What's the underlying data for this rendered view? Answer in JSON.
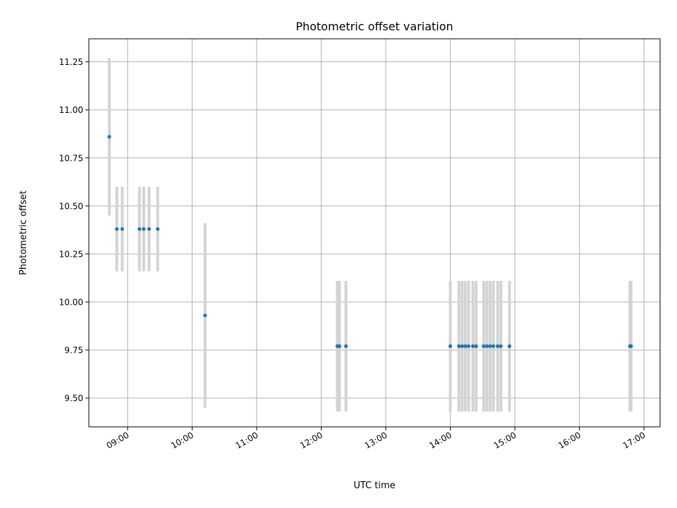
{
  "chart_data": {
    "type": "scatter",
    "title": "Photometric offset variation",
    "xlabel": "UTC time",
    "ylabel": "Photometric offset",
    "x_ticks": [
      "09:00",
      "10:00",
      "11:00",
      "12:00",
      "13:00",
      "14:00",
      "15:00",
      "16:00",
      "17:00"
    ],
    "xlim": [
      "08:24",
      "17:15"
    ],
    "y_ticks": [
      "9.50",
      "9.75",
      "10.00",
      "10.25",
      "10.50",
      "10.75",
      "11.00",
      "11.25"
    ],
    "ylim": [
      9.35,
      11.37
    ],
    "grid": true,
    "colors": {
      "point": "#1f77b4",
      "errorbar": "#d3d3d3",
      "grid": "#b0b0b0"
    },
    "points": [
      {
        "x": "08:43",
        "y": 10.86,
        "err": 0.41
      },
      {
        "x": "08:50",
        "y": 10.38,
        "err": 0.22
      },
      {
        "x": "08:55",
        "y": 10.38,
        "err": 0.22
      },
      {
        "x": "09:11",
        "y": 10.38,
        "err": 0.22
      },
      {
        "x": "09:15",
        "y": 10.38,
        "err": 0.22
      },
      {
        "x": "09:20",
        "y": 10.38,
        "err": 0.22
      },
      {
        "x": "09:28",
        "y": 10.38,
        "err": 0.22
      },
      {
        "x": "10:12",
        "y": 9.93,
        "err": 0.48
      },
      {
        "x": "12:15",
        "y": 9.77,
        "err": 0.34
      },
      {
        "x": "12:17",
        "y": 9.77,
        "err": 0.34
      },
      {
        "x": "12:23",
        "y": 9.77,
        "err": 0.34
      },
      {
        "x": "14:00",
        "y": 9.77,
        "err": 0.34
      },
      {
        "x": "14:08",
        "y": 9.77,
        "err": 0.34
      },
      {
        "x": "14:11",
        "y": 9.77,
        "err": 0.34
      },
      {
        "x": "14:14",
        "y": 9.77,
        "err": 0.34
      },
      {
        "x": "14:17",
        "y": 9.77,
        "err": 0.34
      },
      {
        "x": "14:21",
        "y": 9.77,
        "err": 0.34
      },
      {
        "x": "14:24",
        "y": 9.77,
        "err": 0.34
      },
      {
        "x": "14:31",
        "y": 9.77,
        "err": 0.34
      },
      {
        "x": "14:34",
        "y": 9.77,
        "err": 0.34
      },
      {
        "x": "14:37",
        "y": 9.77,
        "err": 0.34
      },
      {
        "x": "14:40",
        "y": 9.77,
        "err": 0.34
      },
      {
        "x": "14:44",
        "y": 9.77,
        "err": 0.34
      },
      {
        "x": "14:47",
        "y": 9.77,
        "err": 0.34
      },
      {
        "x": "14:55",
        "y": 9.77,
        "err": 0.34
      },
      {
        "x": "16:47",
        "y": 9.77,
        "err": 0.34
      },
      {
        "x": "16:48",
        "y": 9.77,
        "err": 0.34
      }
    ]
  }
}
